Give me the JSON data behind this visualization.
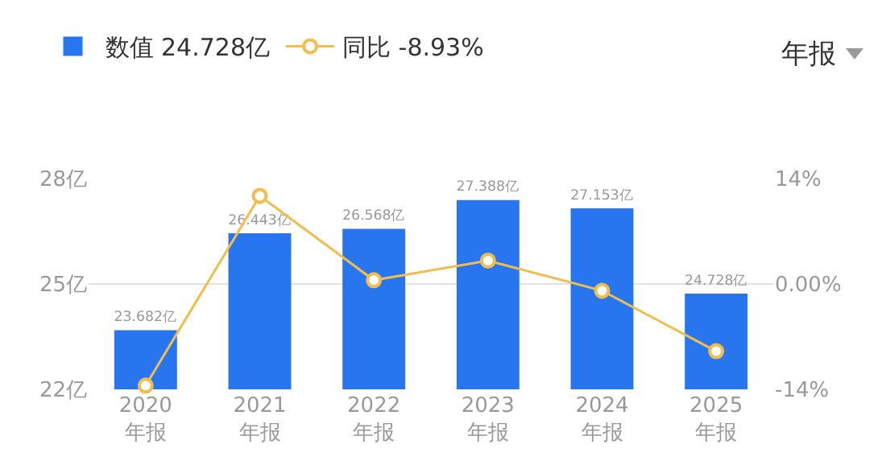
{
  "chart_data": {
    "type": "bar",
    "categories": [
      "2020\n年报",
      "2021\n年报",
      "2022\n年报",
      "2023\n年报",
      "2024\n年报",
      "2025\n年报"
    ],
    "series": [
      {
        "name": "数值 24.728亿",
        "color": "#2776f0",
        "values": [
          23.682,
          26.443,
          26.568,
          27.388,
          27.153,
          24.728
        ],
        "value_labels": [
          "23.682亿",
          "26.443亿",
          "26.568亿",
          "27.388亿",
          "27.153亿",
          "24.728亿"
        ]
      },
      {
        "name": "同比 -8.93%",
        "type": "line",
        "axis": "y2",
        "color": "#f2bd4d",
        "values": [
          -13.5,
          11.7,
          0.5,
          3.1,
          -0.9,
          -8.93
        ]
      }
    ],
    "ylim": [
      22,
      28
    ],
    "yticks": [
      {
        "value": 22,
        "label": "22亿"
      },
      {
        "value": 25,
        "label": "25亿"
      },
      {
        "value": 28,
        "label": "28亿"
      }
    ],
    "y2lim": [
      -14,
      14
    ],
    "y2ticks": [
      {
        "value": -14,
        "label": "-14%"
      },
      {
        "value": 0,
        "label": "0.00%"
      },
      {
        "value": 14,
        "label": "14%"
      }
    ],
    "grid": "y",
    "legend": "top left",
    "marker": "circle",
    "line_style": "solid",
    "annotations": [
      "年报"
    ]
  }
}
